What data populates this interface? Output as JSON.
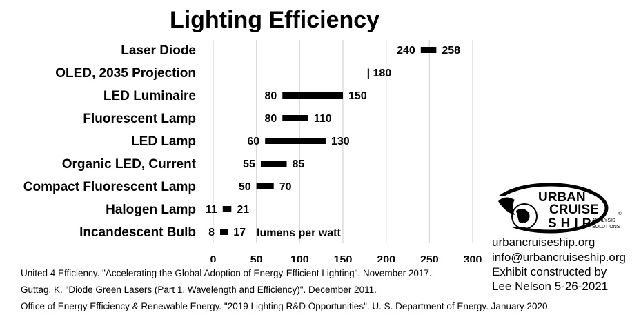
{
  "chart_data": {
    "type": "bar",
    "title": "Lighting Efficiency",
    "xlim": [
      0,
      300
    ],
    "xticks": [
      "0",
      "50",
      "100",
      "150",
      "200",
      "250",
      "300"
    ],
    "unit_label": "lumens per watt",
    "grid": true,
    "categories": [
      "Laser Diode",
      "OLED, 2035 Projection",
      "LED Luminaire",
      "Fluorescent Lamp",
      "LED Lamp",
      "Organic LED, Current",
      "Compact Fluorescent Lamp",
      "Halogen Lamp",
      "Incandescent Bulb"
    ],
    "ranges": [
      {
        "low": 240,
        "high": 258,
        "low_label": "240",
        "high_label": "258"
      },
      {
        "low": 180,
        "high": 180,
        "low_label": "",
        "high_label": "| 180"
      },
      {
        "low": 80,
        "high": 150,
        "low_label": "80",
        "high_label": "150"
      },
      {
        "low": 80,
        "high": 110,
        "low_label": "80",
        "high_label": "110"
      },
      {
        "low": 60,
        "high": 130,
        "low_label": "60",
        "high_label": "130"
      },
      {
        "low": 55,
        "high": 85,
        "low_label": "55",
        "high_label": "85"
      },
      {
        "low": 50,
        "high": 70,
        "low_label": "50",
        "high_label": "70"
      },
      {
        "low": 11,
        "high": 21,
        "low_label": "11",
        "high_label": "21"
      },
      {
        "low": 8,
        "high": 17,
        "low_label": "8",
        "high_label": "17"
      }
    ],
    "bar_color": "#000000",
    "grid_color": "#d9d9d9"
  },
  "sources": [
    "United 4 Efficiency. \"Accelerating the Global Adoption of Energy-Efficient Lighting\". November 2017.",
    "Guttag, K. \"Diode Green Lasers (Part 1, Wavelength and Efficiency)\". December 2011.",
    "Office of Energy Efficiency & Renewable Energy. \"2019 Lighting R&D Opportunities\". U. S. Department of Energy. January 2020."
  ],
  "logo": {
    "line1": "URBAN",
    "line2": "CRUISE",
    "line3": "SHIP",
    "sub1": "ANALYSIS",
    "sub2": "SOLUTIONS",
    "reg": "®",
    "copy": "©"
  },
  "contact": {
    "website": "urbancruiseship.org",
    "email": "info@urbancruiseship.org",
    "credit1": "Exhibit constructed by",
    "credit2": "Lee Nelson 5-26-2021"
  }
}
